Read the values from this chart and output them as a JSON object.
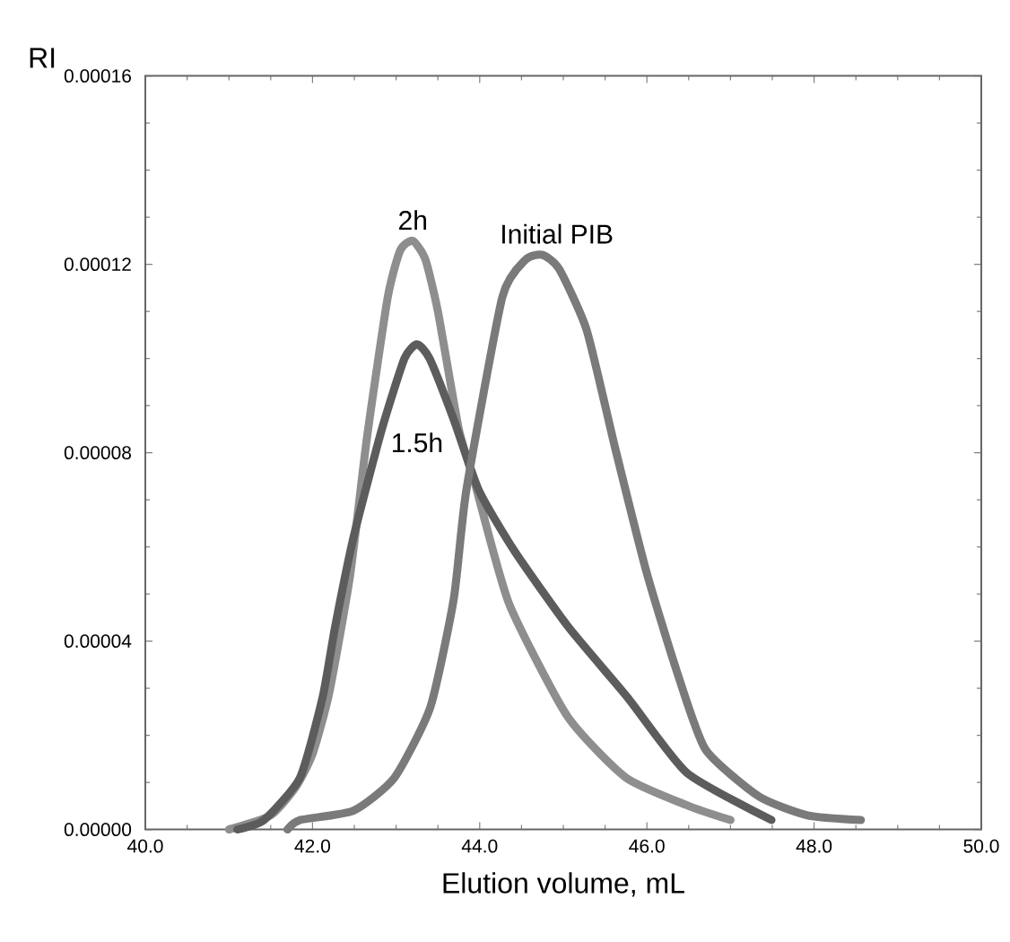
{
  "chart_data": {
    "type": "line",
    "xlabel": "Elution volume, mL",
    "ylabel": "RI",
    "xlim": [
      40,
      50
    ],
    "ylim": [
      0,
      0.00016
    ],
    "xticks": [
      {
        "value": 40,
        "label": "40.0"
      },
      {
        "value": 42,
        "label": "42.0"
      },
      {
        "value": 44,
        "label": "44.0"
      },
      {
        "value": 46,
        "label": "46.0"
      },
      {
        "value": 48,
        "label": "48.0"
      },
      {
        "value": 50,
        "label": "50.0"
      }
    ],
    "yticks": [
      {
        "value": 0,
        "label": "0.00000"
      },
      {
        "value": 4e-05,
        "label": "0.00004"
      },
      {
        "value": 8e-05,
        "label": "0.00008"
      },
      {
        "value": 0.00012,
        "label": "0.00012"
      },
      {
        "value": 0.00016,
        "label": "0.00016"
      }
    ],
    "grid": false,
    "line_style": "solid",
    "series": [
      {
        "name": "2h",
        "color": "#8e8e8e",
        "x": [
          41.0,
          41.5,
          41.8,
          42.0,
          42.2,
          42.45,
          42.65,
          42.9,
          43.05,
          43.2,
          43.35,
          43.5,
          43.75,
          43.95,
          44.35,
          45.05,
          45.75,
          46.5,
          47.0
        ],
        "values": [
          0,
          3e-06,
          9e-06,
          1.6e-05,
          2.9e-05,
          5.4e-05,
          8.3e-05,
          0.000113,
          0.000123,
          0.000125,
          0.000121,
          0.00011,
          8.5e-05,
          7.3e-05,
          4.8e-05,
          2.4e-05,
          1.1e-05,
          5e-06,
          2e-06
        ]
      },
      {
        "name": "1.5h",
        "color": "#5c5c5c",
        "x": [
          41.1,
          41.42,
          41.85,
          42.12,
          42.27,
          42.49,
          42.83,
          43.1,
          43.25,
          43.4,
          43.69,
          43.99,
          44.42,
          45.06,
          45.77,
          46.48,
          47.49
        ],
        "values": [
          0,
          2e-06,
          1.1e-05,
          2.8e-05,
          4.3e-05,
          6.2e-05,
          8.5e-05,
          0.0001,
          0.000103,
          0.0001,
          8.7e-05,
          7.2e-05,
          5.9e-05,
          4.3e-05,
          2.8e-05,
          1.2e-05,
          2e-06
        ]
      },
      {
        "name": "Initial PIB",
        "color": "#7a7a7a",
        "x": [
          41.7,
          41.85,
          42.49,
          42.98,
          43.41,
          43.69,
          43.84,
          44.27,
          44.55,
          44.75,
          44.95,
          45.28,
          45.62,
          45.99,
          46.35,
          46.7,
          47.34,
          47.92,
          48.56
        ],
        "values": [
          0,
          2e-06,
          4e-06,
          1.1e-05,
          2.6e-05,
          4.9e-05,
          7.2e-05,
          0.000113,
          0.000121,
          0.000122,
          0.000119,
          0.000106,
          8.1e-05,
          5.5e-05,
          3.4e-05,
          1.7e-05,
          7e-06,
          3e-06,
          2e-06
        ]
      }
    ]
  }
}
